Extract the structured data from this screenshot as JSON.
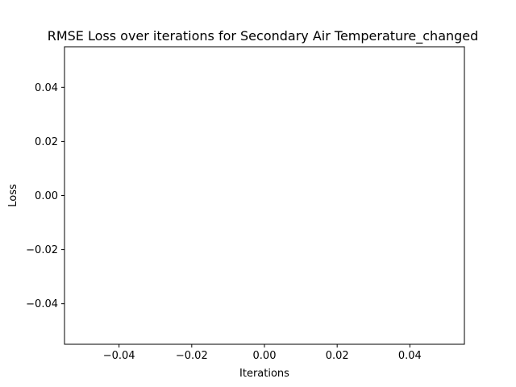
{
  "chart_data": {
    "type": "line",
    "title": "RMSE Loss over iterations for Secondary Air Temperature_changed",
    "xlabel": "Iterations",
    "ylabel": "Loss",
    "xlim": [
      -0.055,
      0.055
    ],
    "ylim": [
      -0.055,
      0.055
    ],
    "x_ticks": [
      -0.04,
      -0.02,
      0.0,
      0.02,
      0.04
    ],
    "x_tick_labels": [
      "−0.04",
      "−0.02",
      "0.00",
      "0.02",
      "0.04"
    ],
    "y_ticks": [
      -0.04,
      -0.02,
      0.0,
      0.02,
      0.04
    ],
    "y_tick_labels": [
      "−0.04",
      "−0.02",
      "0.00",
      "0.02",
      "0.04"
    ],
    "grid": false,
    "legend": "none",
    "series": [
      {
        "x": [],
        "y": []
      }
    ],
    "colors": {
      "axes": "#000000",
      "background": "#ffffff",
      "series": "#1f77b4"
    }
  }
}
